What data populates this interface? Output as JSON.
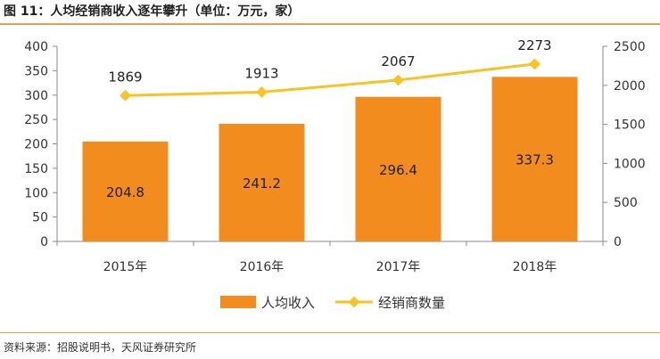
{
  "figure_title": "图 11：人均经销商收入逐年攀升（单位：万元，家）",
  "source": "资料来源：招股说明书，天风证券研究所",
  "chart_data": {
    "type": "bar",
    "categories": [
      "2015年",
      "2016年",
      "2017年",
      "2018年"
    ],
    "series": [
      {
        "name": "人均收入",
        "type": "bar",
        "axis": "left",
        "color": "#f28c1f",
        "values": [
          204.8,
          241.2,
          296.4,
          337.3
        ]
      },
      {
        "name": "经销商数量",
        "type": "line",
        "axis": "right",
        "color": "#f7c325",
        "values": [
          1869,
          1913,
          2067,
          2273
        ]
      }
    ],
    "y_left": {
      "ylim": [
        0,
        400
      ],
      "ticks": [
        0,
        50,
        100,
        150,
        200,
        250,
        300,
        350,
        400
      ]
    },
    "y_right": {
      "ylim": [
        0,
        2500
      ],
      "ticks": [
        0,
        500,
        1000,
        1500,
        2000,
        2500
      ]
    },
    "grid": false,
    "legend": "bottom-center"
  }
}
